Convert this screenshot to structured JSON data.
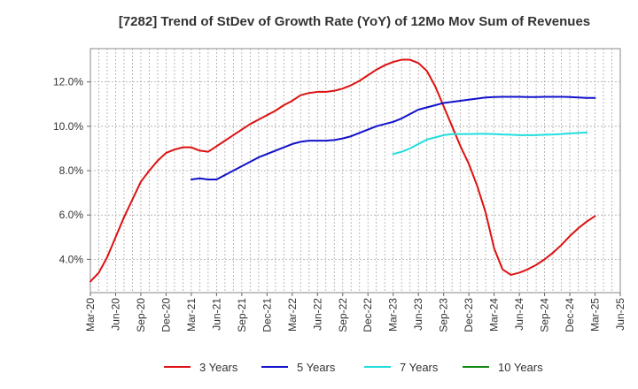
{
  "chart_data": {
    "type": "line",
    "title": "[7282]  Trend of StDev of Growth Rate (YoY) of 12Mo Mov Sum of Revenues",
    "xlabel": "",
    "ylabel": "",
    "ylim": [
      2.5,
      13.5
    ],
    "y_ticks": [
      4.0,
      6.0,
      8.0,
      10.0,
      12.0
    ],
    "y_tick_labels": [
      "4.0%",
      "6.0%",
      "8.0%",
      "10.0%",
      "12.0%"
    ],
    "x_tick_labels": [
      "Mar-20",
      "Jun-20",
      "Sep-20",
      "Dec-20",
      "Mar-21",
      "Jun-21",
      "Sep-21",
      "Dec-21",
      "Mar-22",
      "Jun-22",
      "Sep-22",
      "Dec-22",
      "Mar-23",
      "Jun-23",
      "Sep-23",
      "Dec-23",
      "Mar-24",
      "Jun-24",
      "Sep-24",
      "Dec-24",
      "Mar-25",
      "Jun-25"
    ],
    "grid": true,
    "legend_position": "bottom",
    "series": [
      {
        "name": "3 Years",
        "color": "#dd1111",
        "start_index": 0,
        "values": [
          3.0,
          3.4,
          4.1,
          5.0,
          5.9,
          6.7,
          7.5,
          8.0,
          8.45,
          8.8,
          8.95,
          9.05,
          9.05,
          8.9,
          8.85,
          9.1,
          9.35,
          9.6,
          9.85,
          10.1,
          10.3,
          10.5,
          10.7,
          10.95,
          11.15,
          11.4,
          11.5,
          11.55,
          11.55,
          11.6,
          11.7,
          11.85,
          12.05,
          12.3,
          12.55,
          12.75,
          12.9,
          13.0,
          13.0,
          12.85,
          12.5,
          11.8,
          10.9,
          10.0,
          9.1,
          8.3,
          7.3,
          6.1,
          4.5,
          3.55,
          3.3,
          3.4,
          3.55,
          3.75,
          4.0,
          4.3,
          4.65,
          5.05,
          5.4,
          5.7,
          5.95
        ]
      },
      {
        "name": "5 Years",
        "color": "#1111cc",
        "start_index": 12,
        "values": [
          7.6,
          7.65,
          7.6,
          7.6,
          7.8,
          8.0,
          8.2,
          8.4,
          8.6,
          8.75,
          8.9,
          9.05,
          9.2,
          9.3,
          9.35,
          9.35,
          9.35,
          9.38,
          9.45,
          9.55,
          9.7,
          9.85,
          10.0,
          10.1,
          10.2,
          10.35,
          10.55,
          10.75,
          10.85,
          10.95,
          11.05,
          11.1,
          11.15,
          11.2,
          11.25,
          11.3,
          11.32,
          11.33,
          11.33,
          11.33,
          11.32,
          11.32,
          11.33,
          11.33,
          11.33,
          11.32,
          11.3,
          11.28,
          11.28
        ]
      },
      {
        "name": "7 Years",
        "color": "#22dddd",
        "start_index": 36,
        "values": [
          8.75,
          8.85,
          9.0,
          9.2,
          9.4,
          9.5,
          9.6,
          9.65,
          9.65,
          9.65,
          9.66,
          9.66,
          9.65,
          9.63,
          9.62,
          9.6,
          9.6,
          9.6,
          9.62,
          9.63,
          9.65,
          9.68,
          9.7,
          9.72
        ]
      },
      {
        "name": "10 Years",
        "color": "#118811",
        "start_index": 60,
        "values": []
      }
    ]
  }
}
